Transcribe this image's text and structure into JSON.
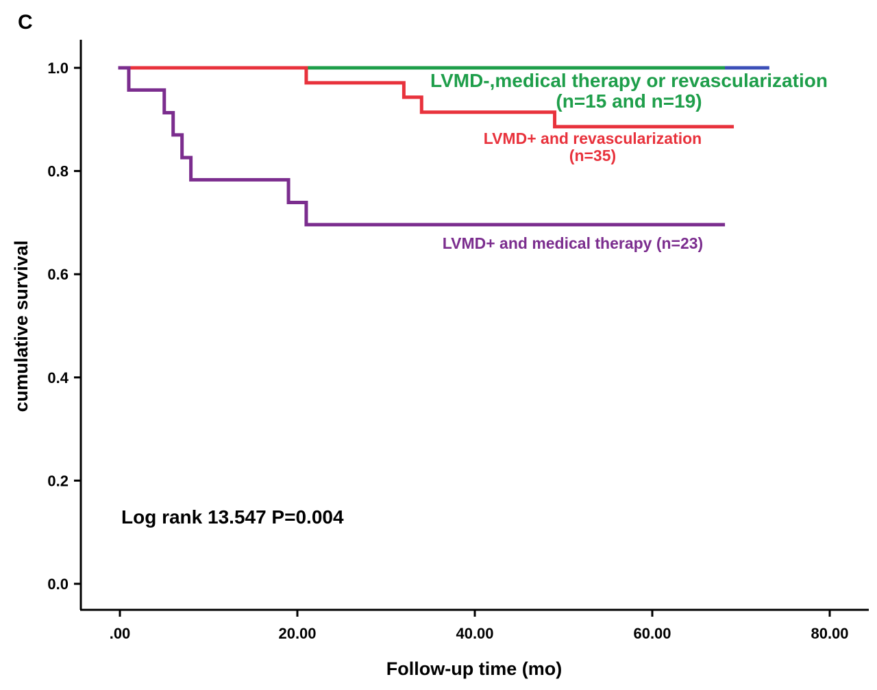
{
  "chart_data": {
    "type": "line",
    "panel_label": "C",
    "xlabel": "Follow-up time (mo)",
    "ylabel": "cumulative survival",
    "xlim": [
      -4.5,
      84
    ],
    "ylim": [
      -0.05,
      1.06
    ],
    "x_ticks": [
      0,
      20,
      40,
      60,
      80
    ],
    "x_tick_labels": [
      ".00",
      "20.00",
      "40.00",
      "60.00",
      "80.00"
    ],
    "y_ticks": [
      0,
      0.2,
      0.4,
      0.6,
      0.8,
      1.0
    ],
    "y_tick_labels": [
      "0.0",
      "0.2",
      "0.4",
      "0.6",
      "0.8",
      "1.0"
    ],
    "series": [
      {
        "key": "blue",
        "color": "#3b4fb8",
        "steps": [
          [
            0,
            1.0
          ],
          [
            73,
            1.0
          ]
        ]
      },
      {
        "key": "green",
        "color": "#1e9e4a",
        "steps": [
          [
            21,
            1.0
          ],
          [
            68,
            1.0
          ]
        ]
      },
      {
        "key": "red",
        "color": "#e8323c",
        "steps": [
          [
            1,
            1.0
          ],
          [
            21,
            0.971
          ],
          [
            32,
            0.943
          ],
          [
            34,
            0.914
          ],
          [
            49,
            0.886
          ],
          [
            69,
            0.886
          ]
        ]
      },
      {
        "key": "purple",
        "color": "#7b2d8e",
        "steps": [
          [
            0,
            1.0
          ],
          [
            1,
            0.957
          ],
          [
            5,
            0.913
          ],
          [
            6,
            0.87
          ],
          [
            7,
            0.826
          ],
          [
            8,
            0.783
          ],
          [
            19,
            0.739
          ],
          [
            21,
            0.696
          ],
          [
            68,
            0.696
          ]
        ]
      }
    ],
    "annotations": [
      {
        "key": "green",
        "color": "#1e9e4a",
        "lines": [
          "LVMD-,medical therapy or revascularization",
          "(n=15 and n=19)"
        ]
      },
      {
        "key": "red",
        "color": "#e8323c",
        "lines": [
          "LVMD+ and revascularization",
          "(n=35)"
        ]
      },
      {
        "key": "purple",
        "color": "#7b2d8e",
        "lines": [
          "LVMD+ and medical therapy (n=23)"
        ]
      }
    ],
    "statistic_text": "Log rank 13.547 P=0.004"
  }
}
